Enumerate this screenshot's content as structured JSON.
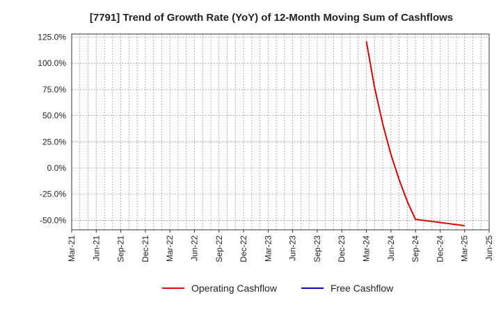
{
  "chart_data": {
    "type": "line",
    "title": "[7791]  Trend of Growth Rate (YoY) of 12-Month Moving Sum of Cashflows",
    "xlabel": "",
    "ylabel": "",
    "x_ticks": [
      "Mar-21",
      "Jun-21",
      "Sep-21",
      "Dec-21",
      "Mar-22",
      "Jun-22",
      "Sep-22",
      "Dec-22",
      "Mar-23",
      "Jun-23",
      "Sep-23",
      "Dec-23",
      "Mar-24",
      "Jun-24",
      "Sep-24",
      "Dec-24",
      "Mar-25",
      "Jun-25"
    ],
    "y_ticks": [
      "125.0%",
      "100.0%",
      "75.0%",
      "50.0%",
      "25.0%",
      "0.0%",
      "-25.0%",
      "-50.0%"
    ],
    "y_tick_values": [
      125,
      100,
      75,
      50,
      25,
      0,
      -25,
      -50
    ],
    "ylim": [
      -59,
      128
    ],
    "x_months_range": [
      "2021-03",
      "2025-06"
    ],
    "grid": true,
    "legend_position": "bottom",
    "series": [
      {
        "name": "Operating Cashflow",
        "color": "#e00000",
        "points": [
          {
            "x": "2024-03",
            "y": 121.0
          },
          {
            "x": "2024-04",
            "y": 77.0
          },
          {
            "x": "2024-05",
            "y": 42.0
          },
          {
            "x": "2024-06",
            "y": 13.0
          },
          {
            "x": "2024-07",
            "y": -11.0
          },
          {
            "x": "2024-08",
            "y": -32.0
          },
          {
            "x": "2024-09",
            "y": -49.0
          },
          {
            "x": "2024-12",
            "y": -52.0
          },
          {
            "x": "2025-03",
            "y": -55.0
          }
        ]
      },
      {
        "name": "Free Cashflow",
        "color": "#0000cc",
        "points": []
      }
    ]
  }
}
